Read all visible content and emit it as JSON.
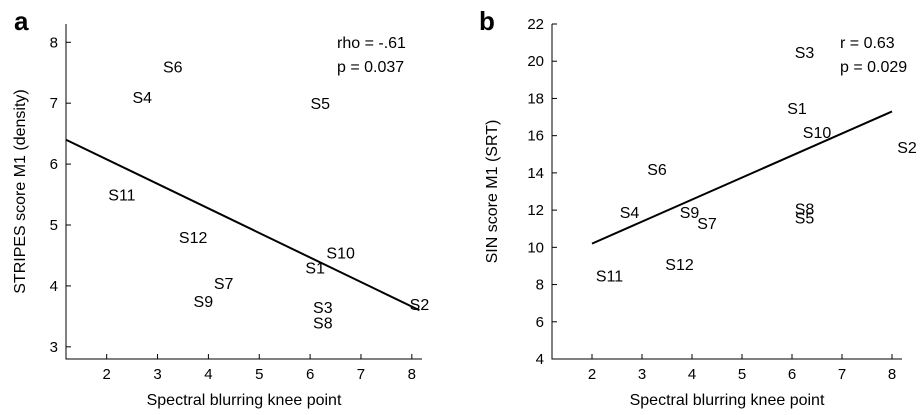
{
  "chart_data": [
    {
      "type": "scatter",
      "panel_label": "a",
      "xlabel": "Spectral blurring knee point",
      "ylabel": "STRIPES score M1 (density)",
      "xlim": [
        1.2,
        8.2
      ],
      "ylim": [
        2.8,
        8.3
      ],
      "xticks": [
        2,
        3,
        4,
        5,
        6,
        7,
        8
      ],
      "yticks": [
        3,
        4,
        5,
        6,
        7,
        8
      ],
      "points": [
        {
          "label": "S6",
          "x": 3.3,
          "y": 7.6
        },
        {
          "label": "S4",
          "x": 2.7,
          "y": 7.1
        },
        {
          "label": "S5",
          "x": 6.2,
          "y": 7.0
        },
        {
          "label": "S11",
          "x": 2.3,
          "y": 5.5
        },
        {
          "label": "S12",
          "x": 3.7,
          "y": 4.8
        },
        {
          "label": "S10",
          "x": 6.6,
          "y": 4.55
        },
        {
          "label": "S1",
          "x": 6.1,
          "y": 4.3
        },
        {
          "label": "S7",
          "x": 4.3,
          "y": 4.05
        },
        {
          "label": "S9",
          "x": 3.9,
          "y": 3.75
        },
        {
          "label": "S3",
          "x": 6.25,
          "y": 3.65
        },
        {
          "label": "S8",
          "x": 6.25,
          "y": 3.4
        },
        {
          "label": "S2",
          "x": 8.15,
          "y": 3.7
        }
      ],
      "fit_line": {
        "x": [
          1.2,
          8.15
        ],
        "y": [
          6.4,
          3.6
        ]
      },
      "annotations": [
        "rho = -.61",
        "p = 0.037"
      ]
    },
    {
      "type": "scatter",
      "panel_label": "b",
      "xlabel": "Spectral blurring knee point",
      "ylabel": "SIN score M1 (SRT)",
      "xlim": [
        1.2,
        8.2
      ],
      "ylim": [
        4,
        22
      ],
      "xticks": [
        2,
        3,
        4,
        5,
        6,
        7,
        8
      ],
      "yticks": [
        4,
        6,
        8,
        10,
        12,
        14,
        16,
        18,
        20,
        22
      ],
      "points": [
        {
          "label": "S3",
          "x": 6.25,
          "y": 20.5
        },
        {
          "label": "S1",
          "x": 6.1,
          "y": 17.5
        },
        {
          "label": "S10",
          "x": 6.5,
          "y": 16.2
        },
        {
          "label": "S2",
          "x": 8.3,
          "y": 15.4
        },
        {
          "label": "S6",
          "x": 3.3,
          "y": 14.2
        },
        {
          "label": "S4",
          "x": 2.75,
          "y": 11.9
        },
        {
          "label": "S9",
          "x": 3.95,
          "y": 11.9
        },
        {
          "label": "S8",
          "x": 6.25,
          "y": 12.1
        },
        {
          "label": "S5",
          "x": 6.25,
          "y": 11.6
        },
        {
          "label": "S7",
          "x": 4.3,
          "y": 11.3
        },
        {
          "label": "S12",
          "x": 3.75,
          "y": 9.1
        },
        {
          "label": "S11",
          "x": 2.35,
          "y": 8.5
        }
      ],
      "fit_line": {
        "x": [
          2.0,
          8.0
        ],
        "y": [
          10.2,
          17.3
        ]
      },
      "annotations": [
        "r = 0.63",
        "p = 0.029"
      ]
    }
  ]
}
